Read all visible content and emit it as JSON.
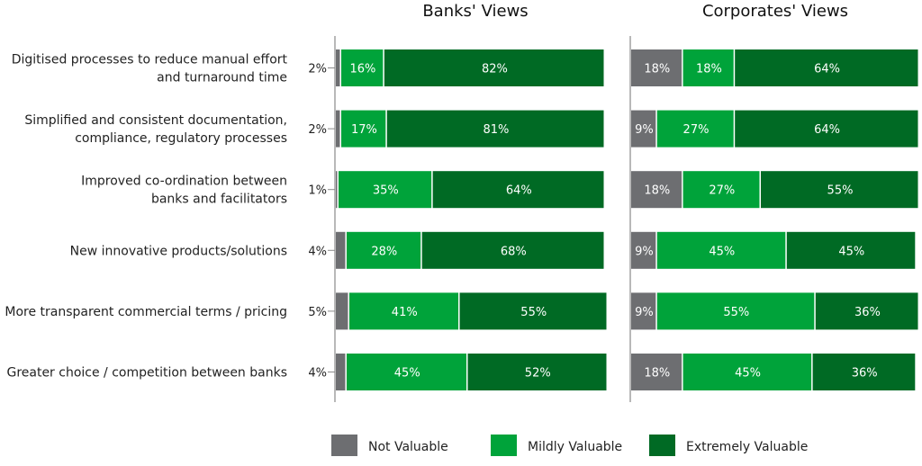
{
  "chart_data": {
    "type": "bar",
    "stacked": true,
    "orientation": "horizontal",
    "percent_scale": [
      0,
      100
    ],
    "categories": [
      [
        "Digitised processes to reduce manual effort",
        "and turnaround time"
      ],
      [
        "Simplified and consistent documentation,",
        "compliance, regulatory processes"
      ],
      [
        "Improved co-ordination between",
        "banks and facilitators"
      ],
      [
        "New innovative products/solutions"
      ],
      [
        "More transparent commercial terms / pricing"
      ],
      [
        "Greater choice / competition between banks"
      ]
    ],
    "legend": [
      {
        "name": "Not Valuable",
        "color": "#6d6e71"
      },
      {
        "name": "Mildly Valuable",
        "color": "#00a33a"
      },
      {
        "name": "Extremely Valuable",
        "color": "#006a24"
      }
    ],
    "panels": [
      {
        "title": "Banks' Views",
        "series": [
          {
            "name": "Not Valuable",
            "values": [
              2,
              2,
              1,
              4,
              5,
              4
            ],
            "labels": [
              "2%",
              "2%",
              "1%",
              "4%",
              "5%",
              "4%"
            ]
          },
          {
            "name": "Mildly Valuable",
            "values": [
              16,
              17,
              35,
              28,
              41,
              45
            ],
            "labels": [
              "16%",
              "17%",
              "35%",
              "28%",
              "41%",
              "45%"
            ]
          },
          {
            "name": "Extremely Valuable",
            "values": [
              82,
              81,
              64,
              68,
              55,
              52
            ],
            "labels": [
              "82%",
              "81%",
              "64%",
              "68%",
              "55%",
              "52%"
            ]
          }
        ]
      },
      {
        "title": "Corporates' Views",
        "series": [
          {
            "name": "Not Valuable",
            "values": [
              18,
              9,
              18,
              9,
              9,
              18
            ],
            "labels": [
              "18%",
              "9%",
              "18%",
              "9%",
              "9%",
              "18%"
            ]
          },
          {
            "name": "Mildly Valuable",
            "values": [
              18,
              27,
              27,
              45,
              55,
              45
            ],
            "labels": [
              "18%",
              "27%",
              "27%",
              "45%",
              "55%",
              "45%"
            ]
          },
          {
            "name": "Extremely Valuable",
            "values": [
              64,
              64,
              55,
              45,
              36,
              36
            ],
            "labels": [
              "64%",
              "64%",
              "55%",
              "45%",
              "36%",
              "36%"
            ]
          }
        ]
      }
    ]
  }
}
